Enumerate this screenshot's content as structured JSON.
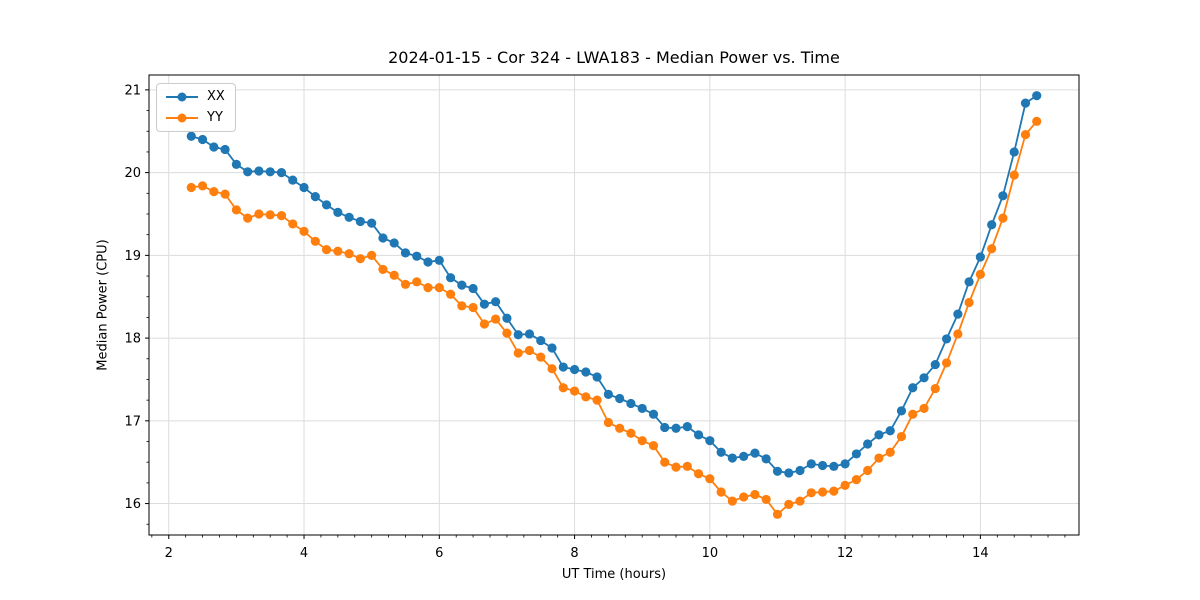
{
  "figure": {
    "title": "2024-01-15 - Cor 324 - LWA183 - Median Power vs. Time",
    "xlabel": "UT Time (hours)",
    "ylabel": "Median Power (CPU)"
  },
  "legend": {
    "position": "upper left",
    "entries": [
      {
        "label": "XX",
        "color": "#1f77b4"
      },
      {
        "label": "YY",
        "color": "#ff7f0e"
      }
    ]
  },
  "chart_data": {
    "type": "line",
    "title": "2024-01-15 - Cor 324 - LWA183 - Median Power vs. Time",
    "xlabel": "UT Time (hours)",
    "ylabel": "Median Power (CPU)",
    "grid": true,
    "grid_color": "#dcdcdc",
    "background": "#ffffff",
    "spine_color": "#000000",
    "marker": "circle",
    "marker_radius": 4.6,
    "line_width": 1.8,
    "xlim": [
      1.708,
      15.458
    ],
    "ylim": [
      15.62,
      21.18
    ],
    "xticks": [
      2,
      4,
      6,
      8,
      10,
      12,
      14
    ],
    "yticks": [
      16,
      17,
      18,
      19,
      20,
      21
    ],
    "minor_xtick_step": 0.25,
    "minor_ytick_step": 0.25,
    "legend_position": "upper left",
    "x": [
      2.333,
      2.5,
      2.667,
      2.833,
      3.0,
      3.167,
      3.333,
      3.5,
      3.667,
      3.833,
      4.0,
      4.167,
      4.333,
      4.5,
      4.667,
      4.833,
      5.0,
      5.167,
      5.333,
      5.5,
      5.667,
      5.833,
      6.0,
      6.167,
      6.333,
      6.5,
      6.667,
      6.833,
      7.0,
      7.167,
      7.333,
      7.5,
      7.667,
      7.833,
      8.0,
      8.167,
      8.333,
      8.5,
      8.667,
      8.833,
      9.0,
      9.167,
      9.333,
      9.5,
      9.667,
      9.833,
      10.0,
      10.167,
      10.333,
      10.5,
      10.667,
      10.833,
      11.0,
      11.167,
      11.333,
      11.5,
      11.667,
      11.833,
      12.0,
      12.167,
      12.333,
      12.5,
      12.667,
      12.833,
      13.0,
      13.167,
      13.333,
      13.5,
      13.667,
      13.833,
      14.0,
      14.167,
      14.333,
      14.5,
      14.667,
      14.833
    ],
    "series": [
      {
        "name": "XX",
        "color": "#1f77b4",
        "values": [
          20.44,
          20.4,
          20.31,
          20.28,
          20.1,
          20.01,
          20.02,
          20.01,
          20.0,
          19.91,
          19.82,
          19.71,
          19.61,
          19.52,
          19.46,
          19.41,
          19.39,
          19.21,
          19.15,
          19.03,
          18.99,
          18.92,
          18.94,
          18.73,
          18.64,
          18.6,
          18.41,
          18.44,
          18.24,
          18.04,
          18.05,
          17.97,
          17.88,
          17.65,
          17.62,
          17.59,
          17.53,
          17.32,
          17.27,
          17.21,
          17.15,
          17.08,
          16.92,
          16.91,
          16.93,
          16.83,
          16.76,
          16.62,
          16.55,
          16.57,
          16.61,
          16.54,
          16.39,
          16.37,
          16.4,
          16.48,
          16.46,
          16.45,
          16.48,
          16.6,
          16.72,
          16.83,
          16.88,
          17.12,
          17.4,
          17.52,
          17.68,
          17.99,
          18.29,
          18.68,
          18.98,
          19.37,
          19.72,
          20.25,
          20.84,
          20.93
        ]
      },
      {
        "name": "YY",
        "color": "#ff7f0e",
        "values": [
          19.82,
          19.84,
          19.77,
          19.74,
          19.55,
          19.45,
          19.5,
          19.49,
          19.48,
          19.38,
          19.29,
          19.17,
          19.07,
          19.05,
          19.02,
          18.96,
          19.0,
          18.83,
          18.76,
          18.65,
          18.68,
          18.61,
          18.61,
          18.53,
          18.39,
          18.37,
          18.17,
          18.23,
          18.06,
          17.82,
          17.85,
          17.77,
          17.63,
          17.4,
          17.36,
          17.29,
          17.25,
          16.98,
          16.91,
          16.85,
          16.76,
          16.7,
          16.5,
          16.44,
          16.45,
          16.36,
          16.3,
          16.14,
          16.03,
          16.08,
          16.11,
          16.05,
          15.87,
          15.99,
          16.03,
          16.13,
          16.14,
          16.15,
          16.22,
          16.29,
          16.4,
          16.55,
          16.62,
          16.81,
          17.08,
          17.15,
          17.39,
          17.7,
          18.05,
          18.43,
          18.77,
          19.08,
          19.45,
          19.97,
          20.46,
          20.62
        ]
      }
    ]
  }
}
